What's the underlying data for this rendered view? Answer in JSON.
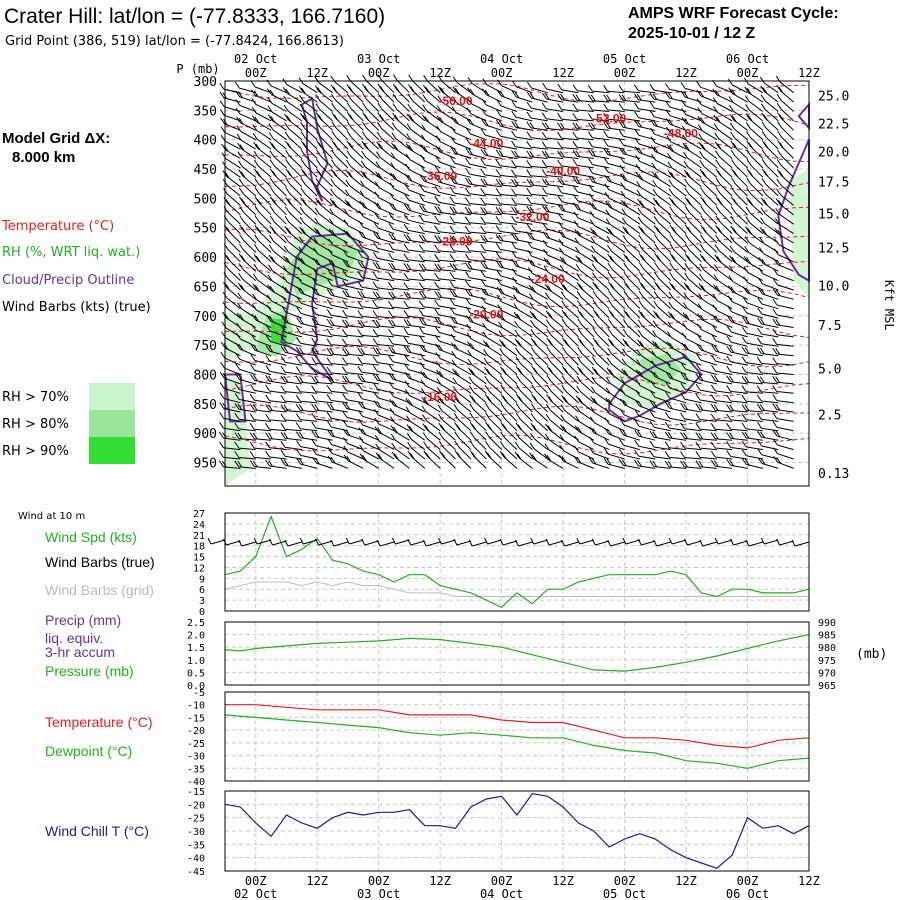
{
  "header": {
    "title": "Crater Hill:  lat/lon = (-77.8333, 166.7160)",
    "subtitle": "Grid Point (386, 519) lat/lon = (-77.8424, 166.8613)",
    "cycle_line1": "AMPS WRF Forecast Cycle:",
    "cycle_line2": "2025-10-01 / 12  Z"
  },
  "left_panel": {
    "model_grid_line1": "Model Grid ΔX:",
    "model_grid_line2": "8.000 km",
    "legend": [
      {
        "label": "Temperature (°C)",
        "color": "#e02020"
      },
      {
        "label": "RH (%, WRT liq. wat.)",
        "color": "#20b020"
      },
      {
        "label": "Cloud/Precip Outline",
        "color": "#6a2f9a"
      },
      {
        "label": "Wind Barbs (kts) (true)",
        "color": "#000000"
      }
    ],
    "rh_legend": [
      {
        "label": "RH > 70%",
        "color": "#cdf5cd"
      },
      {
        "label": "RH > 80%",
        "color": "#9be49b"
      },
      {
        "label": "RH > 90%",
        "color": "#33dd33"
      }
    ]
  },
  "time_axis": {
    "ticks": [
      "00Z",
      "12Z",
      "00Z",
      "12Z",
      "00Z",
      "12Z",
      "00Z",
      "12Z",
      "00Z",
      "12Z"
    ],
    "dates": [
      {
        "label": "02 Oct",
        "tick_index": 0
      },
      {
        "label": "03 Oct",
        "tick_index": 2
      },
      {
        "label": "04 Oct",
        "tick_index": 4
      },
      {
        "label": "05 Oct",
        "tick_index": 6
      },
      {
        "label": "06 Oct",
        "tick_index": 8
      }
    ],
    "start_hour": -6,
    "end_hour": 108
  },
  "chart_data": [
    {
      "type": "heatmap",
      "name": "upper-air",
      "ylabel_left": "P (mb)",
      "ylabel_right": "Kft MSL",
      "pressure_ticks": [
        300,
        350,
        400,
        450,
        500,
        550,
        600,
        650,
        700,
        750,
        800,
        850,
        900,
        950
      ],
      "ylim_pressure": [
        300,
        990
      ],
      "height_ticks": [
        {
          "label": "25.0",
          "p": 325
        },
        {
          "label": "22.5",
          "p": 372
        },
        {
          "label": "20.0",
          "p": 420
        },
        {
          "label": "17.5",
          "p": 471
        },
        {
          "label": "15.0",
          "p": 526
        },
        {
          "label": "12.5",
          "p": 584
        },
        {
          "label": "10.0",
          "p": 648
        },
        {
          "label": "7.5",
          "p": 716
        },
        {
          "label": "5.0",
          "p": 790
        },
        {
          "label": "2.5",
          "p": 868
        },
        {
          "label": "0.13",
          "p": 968
        }
      ],
      "temperature_labels": [
        {
          "text": "-56.00",
          "hour": 39,
          "p": 332
        },
        {
          "text": "-52.00",
          "hour": 69,
          "p": 362
        },
        {
          "text": "-48.00",
          "hour": 83,
          "p": 388
        },
        {
          "text": "-44.00",
          "hour": 45,
          "p": 405
        },
        {
          "text": "-40.00",
          "hour": 60,
          "p": 452
        },
        {
          "text": "-36.00",
          "hour": 36,
          "p": 460
        },
        {
          "text": "-32.00",
          "hour": 54,
          "p": 530
        },
        {
          "text": "-28.00",
          "hour": 39,
          "p": 572
        },
        {
          "text": "-24.00",
          "hour": 57,
          "p": 636
        },
        {
          "text": "-20.00",
          "hour": 45,
          "p": 696
        },
        {
          "text": "-16.00",
          "hour": 36,
          "p": 837
        }
      ],
      "rh_regions": [
        {
          "level": 70,
          "points": [
            [
              8,
              560
            ],
            [
              12,
              540
            ],
            [
              18,
              550
            ],
            [
              22,
              590
            ],
            [
              21,
              640
            ],
            [
              14,
              660
            ],
            [
              10,
              680
            ],
            [
              5,
              700
            ],
            [
              2,
              745
            ],
            [
              -2,
              760
            ],
            [
              -6,
              780
            ],
            [
              -6,
              700
            ],
            [
              0,
              690
            ],
            [
              4,
              650
            ]
          ]
        },
        {
          "level": 80,
          "points": [
            [
              10,
              570
            ],
            [
              15,
              560
            ],
            [
              20,
              590
            ],
            [
              18,
              630
            ],
            [
              12,
              650
            ],
            [
              8,
              665
            ],
            [
              6,
              620
            ]
          ]
        },
        {
          "level": 80,
          "points": [
            [
              2,
              700
            ],
            [
              6,
              690
            ],
            [
              8,
              740
            ],
            [
              4,
              770
            ],
            [
              0,
              760
            ]
          ]
        },
        {
          "level": 90,
          "points": [
            [
              3,
              705
            ],
            [
              6,
              705
            ],
            [
              6,
              750
            ],
            [
              3,
              745
            ]
          ]
        },
        {
          "level": 70,
          "points": [
            [
              -6,
              800
            ],
            [
              -3,
              810
            ],
            [
              -2,
              880
            ],
            [
              -1,
              960
            ],
            [
              -6,
              990
            ]
          ]
        },
        {
          "level": 70,
          "points": [
            [
              74,
              760
            ],
            [
              80,
              740
            ],
            [
              86,
              770
            ],
            [
              84,
              830
            ],
            [
              78,
              860
            ],
            [
              72,
              850
            ],
            [
              70,
              810
            ]
          ]
        },
        {
          "level": 80,
          "points": [
            [
              75,
              775
            ],
            [
              80,
              765
            ],
            [
              83,
              790
            ],
            [
              80,
              820
            ],
            [
              76,
              815
            ]
          ]
        },
        {
          "level": 70,
          "points": [
            [
              104,
              470
            ],
            [
              108,
              450
            ],
            [
              108,
              670
            ],
            [
              105,
              640
            ]
          ]
        }
      ],
      "cloud_outlines": [
        {
          "points": [
            [
              9,
              340
            ],
            [
              11,
              330
            ],
            [
              12,
              380
            ],
            [
              14,
              440
            ],
            [
              12,
              480
            ],
            [
              13,
              505
            ],
            [
              11,
              470
            ],
            [
              10,
              420
            ],
            [
              10,
              370
            ]
          ]
        },
        {
          "points": [
            [
              8,
              600
            ],
            [
              11,
              565
            ],
            [
              18,
              560
            ],
            [
              22,
              600
            ],
            [
              21,
              640
            ],
            [
              16,
              650
            ],
            [
              15,
              610
            ],
            [
              12,
              620
            ],
            [
              11,
              680
            ],
            [
              12,
              740
            ],
            [
              11,
              760
            ],
            [
              15,
              810
            ],
            [
              11,
              790
            ],
            [
              8,
              760
            ],
            [
              5,
              745
            ]
          ]
        },
        {
          "points": [
            [
              -6,
              800
            ],
            [
              -3,
              800
            ],
            [
              -2,
              880
            ],
            [
              -5,
              880
            ]
          ]
        },
        {
          "points": [
            [
              69,
              850
            ],
            [
              72,
              815
            ],
            [
              78,
              785
            ],
            [
              84,
              770
            ],
            [
              87,
              800
            ],
            [
              84,
              830
            ],
            [
              79,
              850
            ],
            [
              75,
              870
            ],
            [
              72,
              880
            ],
            [
              69,
              860
            ]
          ]
        },
        {
          "points": [
            [
              102,
              530
            ],
            [
              104,
              480
            ],
            [
              107,
              420
            ],
            [
              108,
              400
            ],
            [
              108,
              640
            ],
            [
              106,
              630
            ],
            [
              103,
              590
            ]
          ]
        },
        {
          "points": [
            [
              106,
              360
            ],
            [
              108,
              340
            ],
            [
              108,
              380
            ]
          ]
        }
      ]
    },
    {
      "type": "line",
      "name": "wind-10m",
      "panel_label": "Wind at 10 m",
      "labels": [
        {
          "text": "Wind Spd (kts)",
          "color": "#20b020"
        },
        {
          "text": "Wind Barbs (true)",
          "color": "#000000"
        },
        {
          "text": "Wind Barbs (grid)",
          "color": "#bbbbbb"
        }
      ],
      "yticks": [
        0,
        3,
        6,
        9,
        12,
        15,
        18,
        21,
        24,
        27
      ],
      "ylim": [
        0,
        27
      ],
      "series": [
        {
          "name": "Wind Spd (kts)",
          "color": "#20b020",
          "x": [
            -6,
            -3,
            0,
            3,
            6,
            9,
            12,
            15,
            18,
            21,
            24,
            27,
            30,
            33,
            36,
            39,
            42,
            45,
            48,
            51,
            54,
            57,
            60,
            63,
            66,
            69,
            72,
            75,
            78,
            81,
            84,
            87,
            90,
            93,
            96,
            99,
            102,
            105,
            108
          ],
          "values": [
            10,
            11,
            15,
            26,
            15,
            17,
            20,
            14,
            13,
            11,
            10,
            8,
            10,
            10,
            7,
            6,
            5,
            3,
            1,
            5,
            2,
            6,
            6,
            8,
            9,
            10,
            10,
            10,
            10,
            11,
            10,
            5,
            4,
            6,
            6,
            5,
            5,
            5,
            6
          ]
        }
      ],
      "grid_barb_values": [
        6,
        7,
        8,
        8,
        8,
        7,
        8,
        7,
        8,
        7,
        7,
        6,
        5,
        5,
        5,
        4,
        4,
        4,
        4,
        4,
        4,
        4,
        4,
        4,
        4,
        4,
        4,
        4,
        4,
        4,
        4,
        4,
        4,
        4,
        4,
        4,
        4,
        4,
        4
      ]
    },
    {
      "type": "line",
      "name": "pressure",
      "labels": [
        {
          "text": "Precip (mm)",
          "color": "#6a2f9a"
        },
        {
          "text": "liq. equiv.",
          "color": "#6a2f9a"
        },
        {
          "text": "3-hr accum",
          "color": "#6a2f9a"
        },
        {
          "text": "Pressure (mb)",
          "color": "#20b020"
        }
      ],
      "left_yticks": [
        "2.5",
        "2.0",
        "1.5",
        "1.0",
        "0.5",
        "0.0"
      ],
      "right_yticks": [
        990,
        985,
        980,
        975,
        970,
        965
      ],
      "right_unit": "(mb)",
      "ylim": [
        965,
        990
      ],
      "precip_ylim": [
        0,
        2.5
      ],
      "series": [
        {
          "name": "Pressure (mb)",
          "color": "#20b020",
          "x": [
            -6,
            -3,
            0,
            6,
            12,
            18,
            24,
            30,
            36,
            42,
            48,
            54,
            60,
            66,
            72,
            78,
            84,
            90,
            96,
            102,
            108
          ],
          "values": [
            979.0,
            978.5,
            979.5,
            980.5,
            981.5,
            982.0,
            982.5,
            983.5,
            983.0,
            981.5,
            980.0,
            977.0,
            974.0,
            971.0,
            970.5,
            972.0,
            974.0,
            976.5,
            979.5,
            982.5,
            985.0
          ]
        }
      ]
    },
    {
      "type": "line",
      "name": "temperature",
      "labels": [
        {
          "text": "Temperature (°C)",
          "color": "#e02020"
        },
        {
          "text": "Dewpoint (°C)",
          "color": "#20b020"
        }
      ],
      "yticks": [
        -5,
        -10,
        -15,
        -20,
        -25,
        -30,
        -35,
        -40
      ],
      "ylim": [
        -40,
        -5
      ],
      "series": [
        {
          "name": "Temperature (°C)",
          "color": "#e02020",
          "x": [
            -6,
            0,
            6,
            12,
            18,
            24,
            30,
            36,
            42,
            48,
            54,
            60,
            66,
            72,
            78,
            84,
            90,
            96,
            102,
            108
          ],
          "values": [
            -10,
            -10,
            -11,
            -12,
            -12,
            -12,
            -14,
            -14,
            -14,
            -16,
            -17,
            -17,
            -20,
            -23,
            -23,
            -24,
            -26,
            -27,
            -24,
            -23
          ]
        },
        {
          "name": "Dewpoint (°C)",
          "color": "#20b020",
          "x": [
            -6,
            0,
            6,
            12,
            18,
            24,
            30,
            36,
            42,
            48,
            54,
            60,
            66,
            72,
            78,
            84,
            90,
            96,
            102,
            108
          ],
          "values": [
            -14,
            -15,
            -16,
            -17,
            -18,
            -19,
            -21,
            -22,
            -21,
            -22,
            -23,
            -23,
            -26,
            -28,
            -29,
            -32,
            -33,
            -35,
            -32,
            -31
          ]
        }
      ]
    },
    {
      "type": "line",
      "name": "wind-chill",
      "labels": [
        {
          "text": "Wind Chill T (°C)",
          "color": "#1a1a9a"
        }
      ],
      "yticks": [
        -15,
        -20,
        -25,
        -30,
        -35,
        -40,
        -45
      ],
      "ylim": [
        -45,
        -15
      ],
      "series": [
        {
          "name": "Wind Chill T (°C)",
          "color": "#1a1a9a",
          "x": [
            -6,
            -3,
            0,
            3,
            6,
            9,
            12,
            15,
            18,
            21,
            24,
            27,
            30,
            33,
            36,
            39,
            42,
            45,
            48,
            51,
            54,
            57,
            60,
            63,
            66,
            69,
            72,
            75,
            78,
            81,
            84,
            87,
            90,
            93,
            96,
            99,
            102,
            105,
            108
          ],
          "values": [
            -20,
            -21,
            -27,
            -32,
            -24,
            -27,
            -29,
            -25,
            -23,
            -24,
            -23,
            -23,
            -22,
            -28,
            -28,
            -29,
            -21,
            -18,
            -17,
            -24,
            -16,
            -17,
            -21,
            -27,
            -30,
            -36,
            -33,
            -31,
            -33,
            -37,
            -40,
            -42,
            -44,
            -39,
            -25,
            -29,
            -28,
            -31,
            -28
          ]
        }
      ]
    }
  ]
}
